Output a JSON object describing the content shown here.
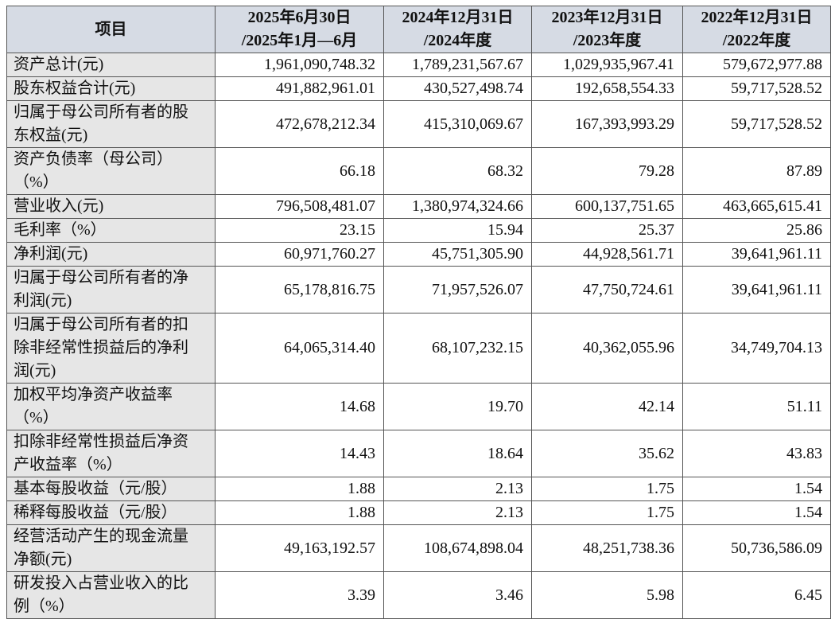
{
  "table": {
    "header": {
      "item": "项目",
      "columns": [
        [
          "2025年6月30日",
          "/2025年1月—6月"
        ],
        [
          "2024年12月31日",
          "/2024年度"
        ],
        [
          "2023年12月31日",
          "/2023年度"
        ],
        [
          "2022年12月31日",
          "/2022年度"
        ]
      ]
    },
    "rows": [
      {
        "label": "资产总计(元)",
        "values": [
          "1,961,090,748.32",
          "1,789,231,567.67",
          "1,029,935,967.41",
          "579,672,977.88"
        ]
      },
      {
        "label": "股东权益合计(元)",
        "values": [
          "491,882,961.01",
          "430,527,498.74",
          "192,658,554.33",
          "59,717,528.52"
        ]
      },
      {
        "label": "归属于母公司所有者的股东权益(元)",
        "values": [
          "472,678,212.34",
          "415,310,069.67",
          "167,393,993.29",
          "59,717,528.52"
        ]
      },
      {
        "label": "资产负债率（母公司）（%）",
        "values": [
          "66.18",
          "68.32",
          "79.28",
          "87.89"
        ]
      },
      {
        "label": "营业收入(元)",
        "values": [
          "796,508,481.07",
          "1,380,974,324.66",
          "600,137,751.65",
          "463,665,615.41"
        ]
      },
      {
        "label": "毛利率（%）",
        "values": [
          "23.15",
          "15.94",
          "25.37",
          "25.86"
        ]
      },
      {
        "label": "净利润(元)",
        "values": [
          "60,971,760.27",
          "45,751,305.90",
          "44,928,561.71",
          "39,641,961.11"
        ]
      },
      {
        "label": "归属于母公司所有者的净利润(元)",
        "values": [
          "65,178,816.75",
          "71,957,526.07",
          "47,750,724.61",
          "39,641,961.11"
        ]
      },
      {
        "label": "归属于母公司所有者的扣除非经常性损益后的净利润(元)",
        "values": [
          "64,065,314.40",
          "68,107,232.15",
          "40,362,055.96",
          "34,749,704.13"
        ]
      },
      {
        "label": "加权平均净资产收益率（%）",
        "values": [
          "14.68",
          "19.70",
          "42.14",
          "51.11"
        ]
      },
      {
        "label": "扣除非经常性损益后净资产收益率（%）",
        "values": [
          "14.43",
          "18.64",
          "35.62",
          "43.83"
        ]
      },
      {
        "label": "基本每股收益（元/股）",
        "values": [
          "1.88",
          "2.13",
          "1.75",
          "1.54"
        ]
      },
      {
        "label": "稀释每股收益（元/股）",
        "values": [
          "1.88",
          "2.13",
          "1.75",
          "1.54"
        ]
      },
      {
        "label": "经营活动产生的现金流量净额(元)",
        "values": [
          "49,163,192.57",
          "108,674,898.04",
          "48,251,738.36",
          "50,736,586.09"
        ]
      },
      {
        "label": "研发投入占营业收入的比例（%）",
        "values": [
          "3.39",
          "3.46",
          "5.98",
          "6.45"
        ]
      }
    ]
  }
}
